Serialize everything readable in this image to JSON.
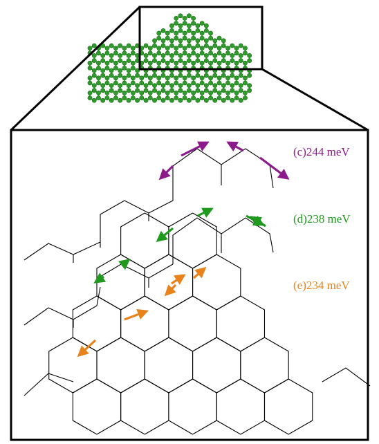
{
  "colors": {
    "atom": "#2e9b2a",
    "atom_stroke": "#1a6b18",
    "bond": "#3aa335",
    "frame": "#000000",
    "mode_c": "#8b1a8b",
    "mode_d": "#1f9a1f",
    "mode_e": "#e8821a"
  },
  "modes": [
    {
      "id": "c",
      "label": "(c)244 meV",
      "color_key": "mode_c"
    },
    {
      "id": "d",
      "label": "(d)238 meV",
      "color_key": "mode_d"
    },
    {
      "id": "e",
      "label": "(e)234 meV",
      "color_key": "mode_e"
    }
  ]
}
